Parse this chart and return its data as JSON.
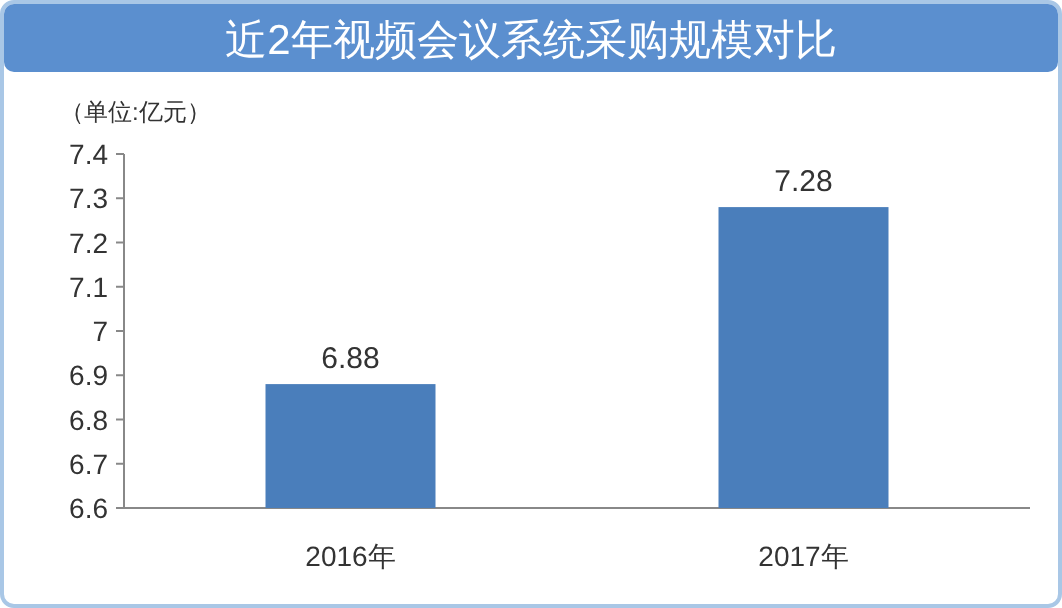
{
  "chart_data": {
    "type": "bar",
    "title": "近2年视频会议系统采购规模对比",
    "ylabel": "（单位:亿元）",
    "categories": [
      "2016年",
      "2017年"
    ],
    "values": [
      6.88,
      7.28
    ],
    "color": "#4a7ebb",
    "data_labels": true,
    "ylim": [
      6.6,
      7.4
    ],
    "yticks": [
      6.6,
      6.7,
      6.8,
      6.9,
      7,
      7.1,
      7.2,
      7.3,
      7.4
    ],
    "grid": false
  }
}
